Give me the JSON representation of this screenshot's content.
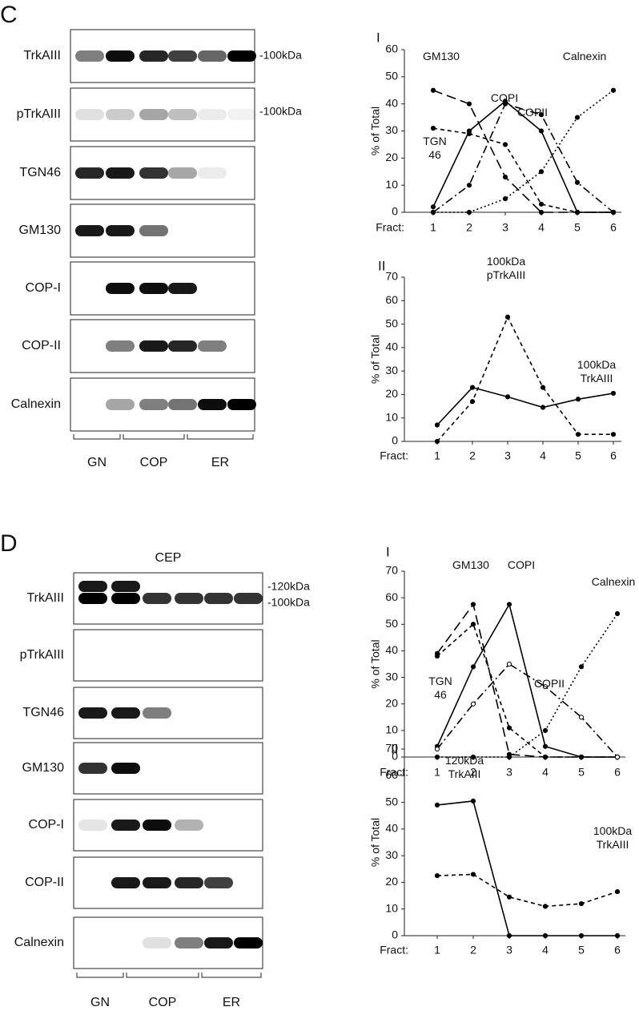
{
  "blots": [
    {
      "panel": "C",
      "rows": [
        {
          "label": "TrkAIII",
          "markers": [
            "-100kDa"
          ]
        },
        {
          "label": "pTrkAIII",
          "markers": [
            "-100kDa"
          ]
        },
        {
          "label": "TGN46",
          "markers": []
        },
        {
          "label": "GM130",
          "markers": []
        },
        {
          "label": "COP-I",
          "markers": []
        },
        {
          "label": "COP-II",
          "markers": []
        },
        {
          "label": "Calnexin",
          "markers": []
        }
      ],
      "groups": [
        "GN",
        "COP",
        "ER"
      ]
    },
    {
      "panel": "D",
      "header": "CEP",
      "rows": [
        {
          "label": "TrkAIII",
          "markers": [
            "-120kDa",
            "-100kDa"
          ]
        },
        {
          "label": "pTrkAIII",
          "markers": []
        },
        {
          "label": "TGN46",
          "markers": []
        },
        {
          "label": "GM130",
          "markers": []
        },
        {
          "label": "COP-I",
          "markers": []
        },
        {
          "label": "COP-II",
          "markers": []
        },
        {
          "label": "Calnexin",
          "markers": []
        }
      ],
      "groups": [
        "GN",
        "COP",
        "ER"
      ]
    }
  ],
  "chart_data": [
    {
      "type": "line",
      "title": "I",
      "ylabel": "% of Total",
      "xlabel": "Fract:",
      "categories": [
        "1",
        "2",
        "3",
        "4",
        "5",
        "6"
      ],
      "ylim": [
        0,
        60
      ],
      "yticks": [
        0,
        10,
        20,
        30,
        40,
        50,
        60
      ],
      "series": [
        {
          "name": "GM130",
          "color": "#000000",
          "dash": "long-dash",
          "marker": "filled",
          "values": [
            45,
            40,
            13,
            0,
            0,
            0
          ]
        },
        {
          "name": "TGN\n46",
          "color": "#000000",
          "dash": "short-dash",
          "marker": "filled",
          "values": [
            31,
            29,
            25,
            3,
            0,
            0
          ]
        },
        {
          "name": "COPI",
          "color": "#000000",
          "dash": "solid",
          "marker": "filled",
          "values": [
            2,
            30,
            41,
            30,
            0,
            0
          ]
        },
        {
          "name": "COPII",
          "color": "#000000",
          "dash": "dash-dot",
          "marker": "filled",
          "values": [
            0,
            10,
            40,
            36,
            11,
            0
          ]
        },
        {
          "name": "Calnexin",
          "color": "#000000",
          "dash": "dotted",
          "marker": "filled",
          "values": [
            0,
            0,
            5,
            15,
            35,
            45
          ]
        }
      ]
    },
    {
      "type": "line",
      "title": "II",
      "ylabel": "% of Total",
      "xlabel": "Fract:",
      "categories": [
        "1",
        "2",
        "3",
        "4",
        "5",
        "6"
      ],
      "ylim": [
        0,
        70
      ],
      "yticks": [
        0,
        10,
        20,
        30,
        40,
        50,
        60,
        70
      ],
      "series": [
        {
          "name": "100kDa\npTrkAIII",
          "color": "#000000",
          "dash": "short-dash",
          "marker": "filled",
          "values": [
            0,
            17,
            53,
            23,
            3,
            3
          ]
        },
        {
          "name": "100kDa\nTrkAIII",
          "color": "#000000",
          "dash": "solid",
          "marker": "filled",
          "values": [
            7,
            23,
            19,
            14.5,
            18,
            20.5
          ]
        }
      ]
    },
    {
      "type": "line",
      "title": "I",
      "ylabel": "% of Total",
      "xlabel": "Fract:",
      "categories": [
        "1",
        "2",
        "3",
        "4",
        "5",
        "6"
      ],
      "ylim": [
        0,
        70
      ],
      "yticks": [
        0,
        10,
        20,
        30,
        40,
        50,
        60,
        70
      ],
      "series": [
        {
          "name": "GM130",
          "color": "#000000",
          "dash": "long-dash",
          "marker": "filled",
          "values": [
            39,
            57.5,
            1,
            0,
            0,
            0
          ]
        },
        {
          "name": "TGN\n46",
          "color": "#000000",
          "dash": "short-dash",
          "marker": "filled",
          "values": [
            38,
            50,
            11,
            0,
            0,
            0
          ]
        },
        {
          "name": "COPI",
          "color": "#000000",
          "dash": "solid",
          "marker": "filled",
          "values": [
            4,
            34,
            57.5,
            4,
            0,
            0
          ]
        },
        {
          "name": "COPII",
          "color": "#000000",
          "dash": "dash-dot",
          "marker": "open",
          "values": [
            3,
            20,
            35,
            26.5,
            15,
            0
          ]
        },
        {
          "name": "Calnexin",
          "color": "#000000",
          "dash": "dotted",
          "marker": "filled",
          "values": [
            0,
            0,
            0,
            10,
            34,
            54
          ]
        }
      ]
    },
    {
      "type": "line",
      "title": "II",
      "ylabel": "% of Total",
      "xlabel": "Fract:",
      "categories": [
        "1",
        "2",
        "3",
        "4",
        "5",
        "6"
      ],
      "ylim": [
        0,
        70
      ],
      "yticks": [
        0,
        10,
        20,
        30,
        40,
        50,
        60,
        70
      ],
      "series": [
        {
          "name": "120kDa\nTrkAIII",
          "color": "#000000",
          "dash": "solid",
          "marker": "filled",
          "values": [
            49,
            50.5,
            0,
            0,
            0,
            0
          ]
        },
        {
          "name": "100kDa\nTrkAIII",
          "color": "#000000",
          "dash": "short-dash",
          "marker": "filled",
          "values": [
            22.5,
            23,
            14.5,
            11,
            12,
            16.5
          ]
        }
      ]
    }
  ]
}
